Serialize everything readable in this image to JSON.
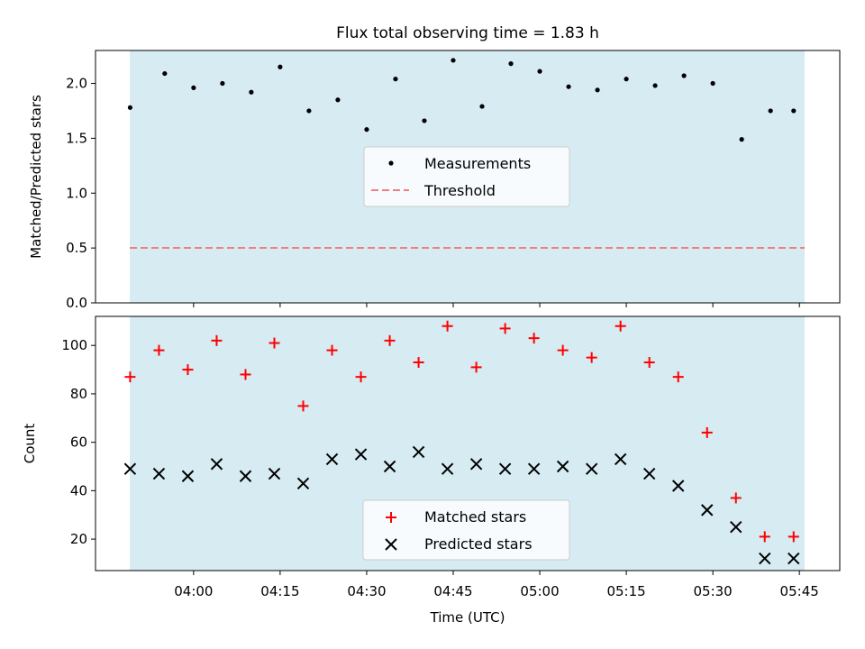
{
  "chart_data": [
    {
      "type": "scatter",
      "title": "Flux total observing time = 1.83 h",
      "ylabel": "Matched/Predicted stars",
      "xlabel": "",
      "ylim": [
        0,
        2.3
      ],
      "yticks": [
        "0.0",
        "0.5",
        "1.0",
        "1.5",
        "2.0"
      ],
      "x_range": [
        "03:43",
        "05:52"
      ],
      "observing_window": [
        "03:49",
        "05:44"
      ],
      "legend_placement": "center",
      "series": [
        {
          "name": "Measurements",
          "marker": "dot",
          "color": "#000000",
          "x": [
            "03:49",
            "03:55",
            "04:00",
            "04:05",
            "04:10",
            "04:15",
            "04:20",
            "04:25",
            "04:30",
            "04:35",
            "04:40",
            "04:45",
            "04:50",
            "04:55",
            "05:00",
            "05:05",
            "05:10",
            "05:15",
            "05:20",
            "05:25",
            "05:30",
            "05:35",
            "05:40",
            "05:44"
          ],
          "y": [
            1.78,
            2.09,
            1.96,
            2.0,
            1.92,
            2.15,
            1.75,
            1.85,
            1.58,
            2.04,
            1.66,
            2.21,
            1.79,
            2.18,
            2.11,
            1.97,
            1.94,
            2.04,
            1.98,
            2.07,
            2.0,
            1.49,
            1.75,
            1.75
          ]
        },
        {
          "name": "Threshold",
          "marker": "dashed-line",
          "color": "#f08080",
          "x": [
            "03:49",
            "05:44"
          ],
          "y": [
            0.5,
            0.5
          ]
        }
      ]
    },
    {
      "type": "scatter",
      "title": "",
      "ylabel": "Count",
      "xlabel": "Time (UTC)",
      "ylim": [
        7,
        112
      ],
      "yticks": [
        "20",
        "40",
        "60",
        "80",
        "100"
      ],
      "x_range": [
        "03:43",
        "05:52"
      ],
      "xticks": [
        "04:00",
        "04:15",
        "04:30",
        "04:45",
        "05:00",
        "05:15",
        "05:30",
        "05:45"
      ],
      "observing_window": [
        "03:49",
        "05:44"
      ],
      "legend_placement": "bottom-center",
      "series": [
        {
          "name": "Matched stars",
          "marker": "plus",
          "color": "#ff0000",
          "x": [
            "03:49",
            "03:54",
            "03:59",
            "04:04",
            "04:09",
            "04:14",
            "04:19",
            "04:24",
            "04:29",
            "04:34",
            "04:39",
            "04:44",
            "04:49",
            "04:54",
            "04:59",
            "05:04",
            "05:09",
            "05:14",
            "05:19",
            "05:24",
            "05:29",
            "05:34",
            "05:39",
            "05:44"
          ],
          "y": [
            87,
            98,
            90,
            102,
            88,
            101,
            75,
            98,
            87,
            102,
            93,
            108,
            91,
            107,
            103,
            98,
            95,
            108,
            93,
            87,
            64,
            37,
            21,
            21
          ]
        },
        {
          "name": "Predicted stars",
          "marker": "x",
          "color": "#000000",
          "x": [
            "03:49",
            "03:54",
            "03:59",
            "04:04",
            "04:09",
            "04:14",
            "04:19",
            "04:24",
            "04:29",
            "04:34",
            "04:39",
            "04:44",
            "04:49",
            "04:54",
            "04:59",
            "05:04",
            "05:09",
            "05:14",
            "05:19",
            "05:24",
            "05:29",
            "05:34",
            "05:39",
            "05:44"
          ],
          "y": [
            49,
            47,
            46,
            51,
            46,
            47,
            43,
            53,
            55,
            50,
            56,
            49,
            51,
            49,
            49,
            50,
            49,
            53,
            47,
            42,
            32,
            25,
            12,
            12
          ]
        }
      ]
    }
  ]
}
